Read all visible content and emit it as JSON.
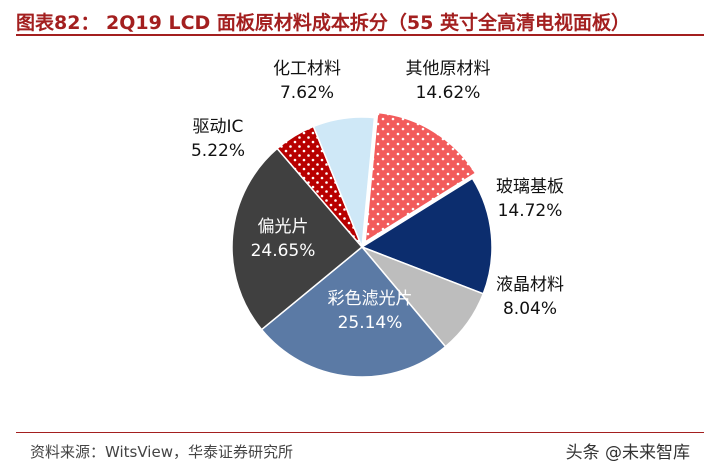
{
  "header": {
    "title": "图表82： 2Q19 LCD 面板原材料成本拆分（55 英寸全高清电视面板）"
  },
  "footer": {
    "source": "资料来源：WitsView，华泰证券研究所",
    "watermark": "头条 @未来智库"
  },
  "colors": {
    "accent": "#a31f1f"
  },
  "chart_data": {
    "type": "pie",
    "title": "",
    "unit": "%",
    "slices": [
      {
        "label": "其他原材料",
        "value": 14.62,
        "display": "14.62%",
        "color": "#f25c5c",
        "pattern": "dots-white"
      },
      {
        "label": "玻璃基板",
        "value": 14.72,
        "display": "14.72%",
        "color": "#0c2d6e",
        "pattern": "none"
      },
      {
        "label": "液晶材料",
        "value": 8.04,
        "display": "8.04%",
        "color": "#bdbdbd",
        "pattern": "none"
      },
      {
        "label": "彩色滤光片",
        "value": 25.14,
        "display": "25.14%",
        "color": "#5b7aa5",
        "pattern": "none"
      },
      {
        "label": "偏光片",
        "value": 24.65,
        "display": "24.65%",
        "color": "#404040",
        "pattern": "none"
      },
      {
        "label": "驱动IC",
        "value": 5.22,
        "display": "5.22%",
        "color": "#b80000",
        "pattern": "dots-white"
      },
      {
        "label": "化工材料",
        "value": 7.62,
        "display": "7.62%",
        "color": "#cfe8f7",
        "pattern": "none"
      }
    ]
  }
}
